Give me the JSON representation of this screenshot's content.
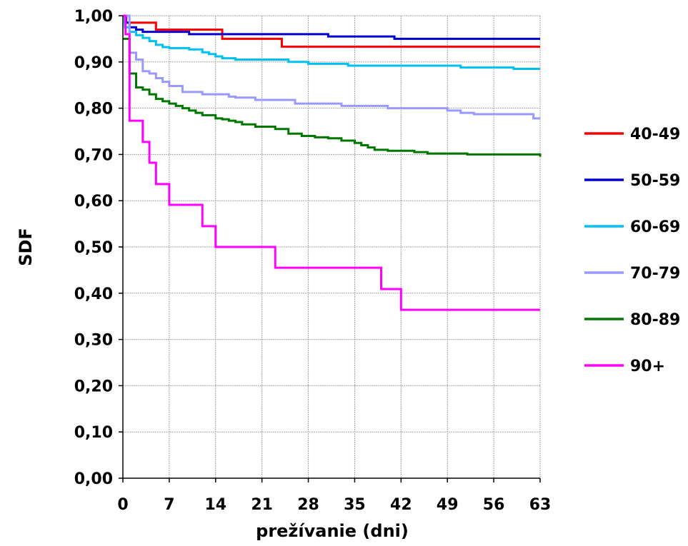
{
  "chart_data": {
    "type": "line",
    "step": true,
    "title": "",
    "xlabel": "prežívanie  (dni)",
    "ylabel": "SDF",
    "xlim": [
      0,
      63
    ],
    "ylim": [
      0,
      1
    ],
    "x_ticks": [
      0,
      7,
      14,
      21,
      28,
      35,
      42,
      49,
      56,
      63
    ],
    "x_tick_labels": [
      "0",
      "7",
      "14",
      "21",
      "28",
      "35",
      "42",
      "49",
      "56",
      "63"
    ],
    "y_ticks": [
      0,
      0.1,
      0.2,
      0.3,
      0.4,
      0.5,
      0.6,
      0.7,
      0.8,
      0.9,
      1.0
    ],
    "y_tick_labels": [
      "0,00",
      "0,10",
      "0,20",
      "0,30",
      "0,40",
      "0,50",
      "0,60",
      "0,70",
      "0,80",
      "0,90",
      "1,00"
    ],
    "grid": true,
    "legend_position": "right",
    "series": [
      {
        "name": "40-49",
        "color": "#ff0000",
        "x": [
          0,
          0.3,
          5,
          15,
          24,
          63
        ],
        "y": [
          1.0,
          0.985,
          0.97,
          0.95,
          0.933,
          0.933
        ]
      },
      {
        "name": "50-59",
        "color": "#0000cc",
        "x": [
          0,
          0.5,
          1,
          2,
          3,
          10,
          31,
          41,
          63
        ],
        "y": [
          1.0,
          0.985,
          0.975,
          0.97,
          0.965,
          0.96,
          0.955,
          0.95,
          0.95
        ]
      },
      {
        "name": "60-69",
        "color": "#00c0f0",
        "x": [
          0,
          0.3,
          1,
          2,
          3,
          4,
          5,
          6,
          7,
          10,
          12,
          13,
          14,
          15,
          17,
          25,
          28,
          34,
          51,
          59,
          63
        ],
        "y": [
          1.0,
          0.975,
          0.965,
          0.958,
          0.952,
          0.945,
          0.937,
          0.932,
          0.93,
          0.927,
          0.921,
          0.917,
          0.912,
          0.908,
          0.905,
          0.9,
          0.896,
          0.892,
          0.888,
          0.885,
          0.885
        ]
      },
      {
        "name": "70-79",
        "color": "#9999ff",
        "x": [
          0,
          1,
          2,
          3,
          4,
          5,
          6,
          7,
          9,
          12,
          16,
          17,
          20,
          26,
          33,
          40,
          49,
          51,
          53,
          62,
          63
        ],
        "y": [
          1.0,
          0.92,
          0.905,
          0.88,
          0.875,
          0.865,
          0.857,
          0.848,
          0.835,
          0.83,
          0.825,
          0.823,
          0.818,
          0.81,
          0.805,
          0.8,
          0.795,
          0.79,
          0.787,
          0.778,
          0.778
        ]
      },
      {
        "name": "80-89",
        "color": "#007700",
        "x": [
          0,
          1,
          2,
          3,
          4,
          5,
          6,
          7,
          8,
          9,
          10,
          11,
          12,
          14,
          15,
          16,
          17,
          18,
          20,
          23,
          25,
          27,
          29,
          31,
          33,
          35,
          36,
          37,
          38,
          40,
          44,
          46,
          52,
          63
        ],
        "y": [
          0.95,
          0.875,
          0.845,
          0.84,
          0.83,
          0.82,
          0.815,
          0.81,
          0.805,
          0.8,
          0.795,
          0.79,
          0.785,
          0.778,
          0.776,
          0.773,
          0.77,
          0.765,
          0.76,
          0.755,
          0.745,
          0.74,
          0.737,
          0.735,
          0.73,
          0.725,
          0.72,
          0.715,
          0.71,
          0.708,
          0.705,
          0.702,
          0.7,
          0.695
        ]
      },
      {
        "name": "90+",
        "color": "#ff00ff",
        "x": [
          0,
          0.4,
          1,
          3,
          4,
          5,
          7,
          12,
          14,
          23,
          39,
          42,
          63
        ],
        "y": [
          1.0,
          0.96,
          0.773,
          0.727,
          0.682,
          0.636,
          0.591,
          0.545,
          0.5,
          0.455,
          0.409,
          0.364,
          0.364
        ]
      }
    ]
  }
}
